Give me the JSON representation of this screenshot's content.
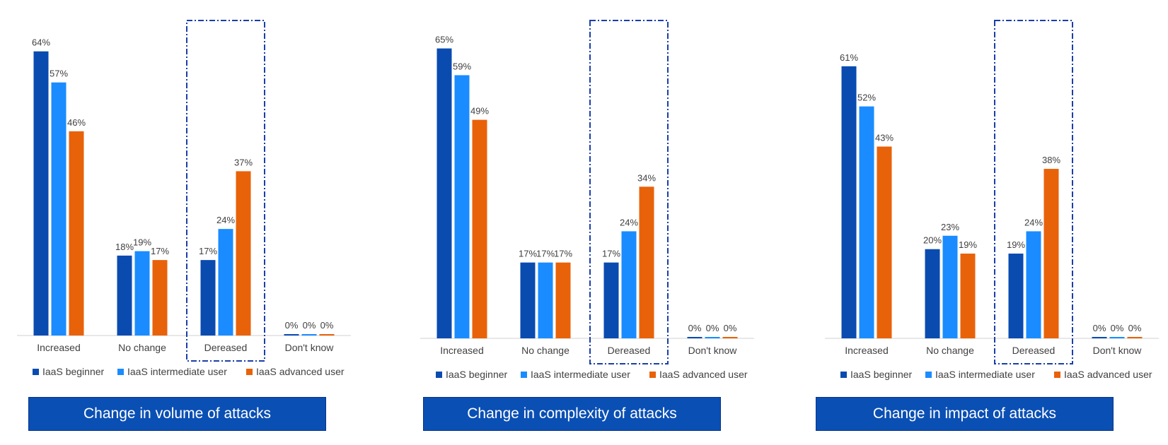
{
  "colors": {
    "series": [
      "#0a4bb0",
      "#1a8cff",
      "#e8620a"
    ],
    "highlight": "#1a3fa8",
    "banner": "#0a4fb4"
  },
  "chart_data": [
    {
      "type": "bar",
      "title": "Change in volume of attacks",
      "categories": [
        "Increased",
        "No change",
        "Dereased",
        "Don't know"
      ],
      "series": [
        {
          "name": "IaaS beginner",
          "values": [
            64,
            18,
            17,
            0
          ]
        },
        {
          "name": "IaaS intermediate user",
          "values": [
            57,
            19,
            24,
            0
          ]
        },
        {
          "name": "IaaS advanced user",
          "values": [
            46,
            17,
            37,
            0
          ]
        }
      ],
      "value_format": "%",
      "ylim": [
        0,
        70
      ],
      "highlighted_category": "Dereased",
      "legend": "bottom"
    },
    {
      "type": "bar",
      "title": "Change in complexity of attacks",
      "categories": [
        "Increased",
        "No change",
        "Dereased",
        "Don't know"
      ],
      "series": [
        {
          "name": "IaaS beginner",
          "values": [
            65,
            17,
            17,
            0
          ]
        },
        {
          "name": "IaaS intermediate user",
          "values": [
            59,
            17,
            24,
            0
          ]
        },
        {
          "name": "IaaS advanced user",
          "values": [
            49,
            17,
            34,
            0
          ]
        }
      ],
      "value_format": "%",
      "ylim": [
        0,
        70
      ],
      "highlighted_category": "Dereased",
      "legend": "bottom"
    },
    {
      "type": "bar",
      "title": "Change in impact of attacks",
      "categories": [
        "Increased",
        "No change",
        "Dereased",
        "Don't know"
      ],
      "series": [
        {
          "name": "IaaS beginner",
          "values": [
            61,
            20,
            19,
            0
          ]
        },
        {
          "name": "IaaS intermediate user",
          "values": [
            52,
            23,
            24,
            0
          ]
        },
        {
          "name": "IaaS advanced user",
          "values": [
            43,
            19,
            38,
            0
          ]
        }
      ],
      "value_format": "%",
      "ylim": [
        0,
        70
      ],
      "highlighted_category": "Dereased",
      "legend": "bottom"
    }
  ]
}
